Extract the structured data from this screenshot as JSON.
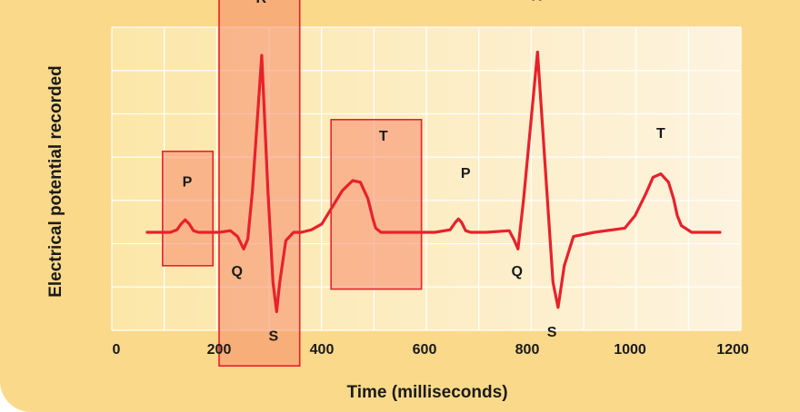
{
  "chart_data": {
    "type": "line",
    "title": "",
    "xlabel": "Time (milliseconds)",
    "ylabel": "Electrical potential recorded",
    "xlim": [
      0,
      1200
    ],
    "x_ticks": [
      "0",
      "200",
      "400",
      "600",
      "800",
      "1000",
      "1200"
    ],
    "grid": true,
    "colors": {
      "line": "#e8212b",
      "box_fill": "#f58a6a",
      "box_stroke": "#e8212b",
      "background": "#fbd98a"
    },
    "series": [
      {
        "x": [
          60,
          105,
          118,
          126,
          134,
          142,
          150,
          160,
          175,
          200,
          222,
          236,
          248,
          256,
          265,
          283,
          295,
          305,
          312,
          318,
          330,
          345,
          360,
          380,
          400,
          420,
          440,
          460,
          475,
          490,
          500,
          505,
          515,
          560,
          620,
          650,
          660,
          666,
          672,
          680,
          690,
          700,
          720,
          765,
          775,
          782,
          793,
          820,
          838,
          850,
          860,
          872,
          890,
          930,
          990,
          1010,
          1030,
          1045,
          1060,
          1075,
          1085,
          1092,
          1100,
          1120,
          1175
        ],
        "y": [
          0,
          0,
          0.03,
          0.1,
          0.15,
          0.1,
          0.02,
          0,
          0,
          0,
          0.02,
          -0.05,
          -0.2,
          -0.08,
          0.5,
          2.12,
          0.5,
          -0.6,
          -0.95,
          -0.6,
          -0.1,
          0,
          0,
          0.03,
          0.1,
          0.3,
          0.5,
          0.62,
          0.6,
          0.4,
          0.15,
          0.05,
          0,
          0,
          0,
          0.03,
          0.12,
          0.16,
          0.12,
          0.02,
          0,
          0,
          0,
          0.02,
          -0.1,
          -0.2,
          0.4,
          2.16,
          0.5,
          -0.6,
          -0.9,
          -0.4,
          -0.05,
          0,
          0.05,
          0.2,
          0.45,
          0.66,
          0.7,
          0.6,
          0.4,
          0.2,
          0.08,
          0,
          0
        ]
      }
    ],
    "wave_labels": [
      {
        "text": "P",
        "x": 138,
        "y": 0.55
      },
      {
        "text": "R",
        "x": 282,
        "y": 2.75
      },
      {
        "text": "Q",
        "x": 235,
        "y": -0.52
      },
      {
        "text": "S",
        "x": 306,
        "y": -1.3
      },
      {
        "text": "T",
        "x": 520,
        "y": 1.1
      },
      {
        "text": "P",
        "x": 680,
        "y": 0.65
      },
      {
        "text": "R",
        "x": 818,
        "y": 2.78
      },
      {
        "text": "Q",
        "x": 780,
        "y": -0.52
      },
      {
        "text": "S",
        "x": 848,
        "y": -1.25
      },
      {
        "text": "T",
        "x": 1060,
        "y": 1.13
      }
    ],
    "highlight_boxes": [
      {
        "wave": "P",
        "x": [
          90,
          188
        ],
        "y": [
          0.97,
          -0.4
        ]
      },
      {
        "wave": "QRS",
        "x": [
          200,
          357
        ],
        "y": [
          3.55,
          -1.6
        ]
      },
      {
        "wave": "T",
        "x": [
          418,
          594
        ],
        "y": [
          1.35,
          -0.68
        ]
      }
    ]
  }
}
